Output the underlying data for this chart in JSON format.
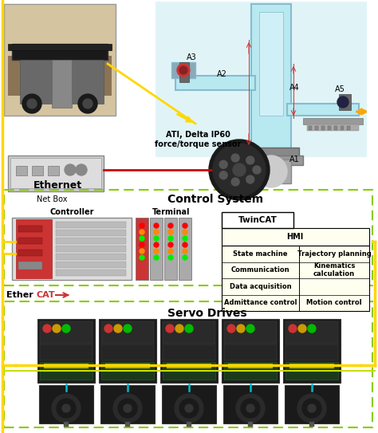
{
  "bg_color": "#ffffff",
  "fig_width": 4.74,
  "fig_height": 5.43,
  "dpi": 100,
  "robot_labels": [
    "A1",
    "A2",
    "A3",
    "A4",
    "A5"
  ],
  "net_box_label": "Net Box",
  "sensor_label": "ATI, Delta IP60\nforce/torque sensor",
  "ethernet_label": "Ethernet",
  "control_system_label": "Control System",
  "controller_label": "Controller",
  "terminal_label": "Terminal",
  "twincat_label": "TwinCAT",
  "hmi_label": "HMI",
  "twincat_items_left": [
    "State machine",
    "Communication",
    "Data acquisition",
    "Admittance control"
  ],
  "twincat_items_right": [
    "Trajectory planning",
    "Kinematics",
    "calculation",
    "Motion control"
  ],
  "ethercat_black": "Ether",
  "ethercat_red": "CAT",
  "servo_drives_label": "Servo Drives",
  "yellow": "#FFD700",
  "orange": "#FFA500",
  "red": "#CC0000",
  "green_dash": "#88CC00",
  "cyan": "#00BBCC",
  "dark_grey": "#2A2A2A",
  "mid_grey": "#555555",
  "light_grey": "#AAAAAA"
}
